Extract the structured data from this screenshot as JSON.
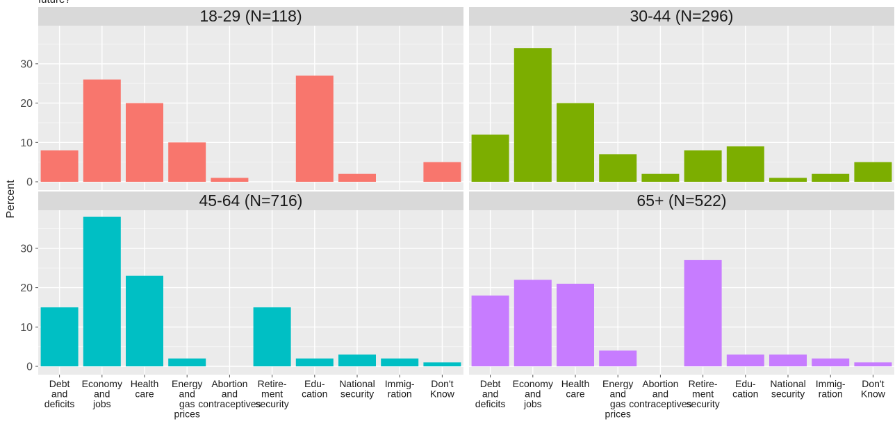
{
  "title_fragment": "future?",
  "chart_data": {
    "type": "bar",
    "ylabel": "Percent",
    "xlabel": "",
    "ylim": [
      0,
      40
    ],
    "yticks": [
      0,
      10,
      20,
      30
    ],
    "grid": true,
    "categories": [
      "Debt and deficits",
      "Economy and jobs",
      "Health care",
      "Energy and gas prices",
      "Abortion and contraceptives",
      "Retire-ment security",
      "Edu-cation",
      "National security",
      "Immig-ration",
      "Don't Know"
    ],
    "category_label_lines": [
      [
        "Debt",
        "and",
        "deficits"
      ],
      [
        "Economy",
        "and",
        "jobs"
      ],
      [
        "Health",
        "care"
      ],
      [
        "Energy",
        "and",
        "gas",
        "prices"
      ],
      [
        "Abortion",
        "and",
        "contraceptives"
      ],
      [
        "Retire-",
        "ment",
        "security"
      ],
      [
        "Edu-",
        "cation"
      ],
      [
        "National",
        "security"
      ],
      [
        "Immig-",
        "ration"
      ],
      [
        "Don't",
        "Know"
      ]
    ],
    "panels": [
      {
        "label": "18-29 (N=118)",
        "color": "#F8766D",
        "values": [
          8,
          26,
          20,
          10,
          1,
          0,
          27,
          2,
          0,
          5
        ]
      },
      {
        "label": "30-44 (N=296)",
        "color": "#7CAE00",
        "values": [
          12,
          34,
          20,
          7,
          2,
          8,
          9,
          1,
          2,
          5
        ]
      },
      {
        "label": "45-64 (N=716)",
        "color": "#00BFC4",
        "values": [
          15,
          38,
          23,
          2,
          0,
          15,
          2,
          3,
          2,
          1
        ]
      },
      {
        "label": "65+ (N=522)",
        "color": "#C77CFF",
        "values": [
          18,
          22,
          21,
          4,
          0,
          27,
          3,
          3,
          2,
          1
        ]
      }
    ]
  }
}
